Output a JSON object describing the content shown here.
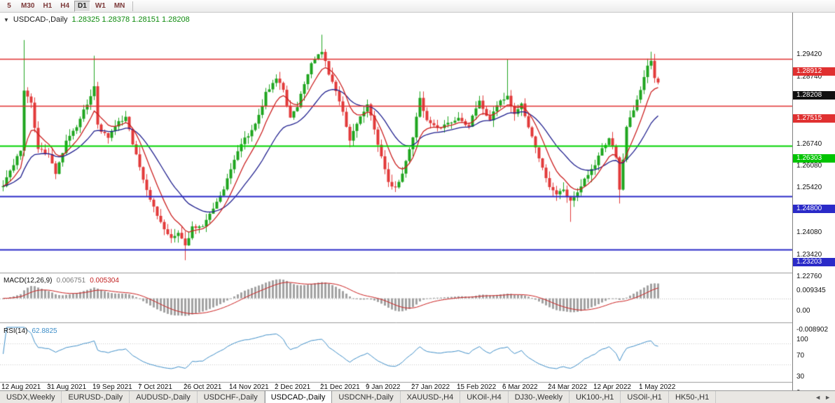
{
  "toolbar": {
    "periods": [
      {
        "label": "5",
        "active": false
      },
      {
        "label": "M30",
        "active": false
      },
      {
        "label": "H1",
        "active": false
      },
      {
        "label": "H4",
        "active": false
      },
      {
        "label": "D1",
        "active": true
      },
      {
        "label": "W1",
        "active": false
      },
      {
        "label": "MN",
        "active": false
      }
    ]
  },
  "chart": {
    "title": "USDCAD-,Daily",
    "ohlc_text": "1.28325 1.28378 1.28151 1.28208",
    "price_axis": {
      "ticks": [
        "1.29420",
        "1.28740",
        "1.27420",
        "1.26740",
        "1.26080",
        "1.25420",
        "1.24080",
        "1.23420",
        "1.22760"
      ],
      "badges": [
        {
          "text": "1.28912",
          "price": 1.28912,
          "bg": "#e03030"
        },
        {
          "text": "1.28208",
          "price": 1.28208,
          "bg": "#101010"
        },
        {
          "text": "1.27515",
          "price": 1.27515,
          "bg": "#e03030"
        },
        {
          "text": "1.26303",
          "price": 1.26303,
          "bg": "#00c400"
        },
        {
          "text": "1.24800",
          "price": 1.248,
          "bg": "#2a2ac8"
        },
        {
          "text": "1.23203",
          "price": 1.23203,
          "bg": "#2a2ac8"
        }
      ]
    }
  },
  "macd": {
    "label": "MACD(12,26,9)",
    "value_main": "0.006751",
    "value_signal": "0.005304",
    "scale_labels": [
      "0.009345",
      "0.00",
      "-0.008902"
    ]
  },
  "rsi": {
    "label": "RSI(14)",
    "value": "62.8825",
    "scale_labels": [
      "100",
      "70",
      "30",
      "0"
    ]
  },
  "dates": {
    "labels": [
      {
        "text": "12 Aug 2021",
        "i": 0
      },
      {
        "text": "31 Aug 2021",
        "i": 13
      },
      {
        "text": "19 Sep 2021",
        "i": 26
      },
      {
        "text": "7 Oct 2021",
        "i": 39
      },
      {
        "text": "26 Oct 2021",
        "i": 52
      },
      {
        "text": "14 Nov 2021",
        "i": 65
      },
      {
        "text": "2 Dec 2021",
        "i": 78
      },
      {
        "text": "21 Dec 2021",
        "i": 91
      },
      {
        "text": "9 Jan 2022",
        "i": 104
      },
      {
        "text": "27 Jan 2022",
        "i": 117
      },
      {
        "text": "15 Feb 2022",
        "i": 130
      },
      {
        "text": "6 Mar 2022",
        "i": 143
      },
      {
        "text": "24 Mar 2022",
        "i": 156
      },
      {
        "text": "12 Apr 2022",
        "i": 169
      },
      {
        "text": "1 May 2022",
        "i": 182
      }
    ]
  },
  "tabs": {
    "items": [
      {
        "label": "USDX,Weekly",
        "active": false
      },
      {
        "label": "EURUSD-,Daily",
        "active": false
      },
      {
        "label": "AUDUSD-,Daily",
        "active": false
      },
      {
        "label": "USDCHF-,Daily",
        "active": false
      },
      {
        "label": "USDCAD-,Daily",
        "active": true
      },
      {
        "label": "USDCNH-,Daily",
        "active": false
      },
      {
        "label": "XAUUSD-,H4",
        "active": false
      },
      {
        "label": "UKOil-,H4",
        "active": false
      },
      {
        "label": "DJ30-,Weekly",
        "active": false
      },
      {
        "label": "UK100-,H1",
        "active": false
      },
      {
        "label": "USOil-,H1",
        "active": false
      },
      {
        "label": "HK50-,H1",
        "active": false
      }
    ],
    "scroll_left": "◄",
    "scroll_right": "►"
  },
  "chart_data": {
    "type": "candlestick",
    "symbol": "USDCAD",
    "period": "Daily",
    "candle_count": 188,
    "visible_price_range": {
      "top": 1.3026,
      "bottom": 1.22529
    },
    "price_keypoints": [
      [
        0,
        1.2515
      ],
      [
        3,
        1.257
      ],
      [
        5,
        1.262
      ],
      [
        6,
        1.28
      ],
      [
        8,
        1.276
      ],
      [
        10,
        1.262
      ],
      [
        13,
        1.261
      ],
      [
        15,
        1.2545
      ],
      [
        18,
        1.265
      ],
      [
        21,
        1.2685
      ],
      [
        24,
        1.276
      ],
      [
        26,
        1.2805
      ],
      [
        27,
        1.269
      ],
      [
        30,
        1.2655
      ],
      [
        33,
        1.27
      ],
      [
        35,
        1.272
      ],
      [
        37,
        1.264
      ],
      [
        39,
        1.257
      ],
      [
        42,
        1.2465
      ],
      [
        45,
        1.2405
      ],
      [
        48,
        1.235
      ],
      [
        50,
        1.2372
      ],
      [
        52,
        1.233
      ],
      [
        54,
        1.2388
      ],
      [
        57,
        1.2392
      ],
      [
        60,
        1.2448
      ],
      [
        63,
        1.25
      ],
      [
        65,
        1.256
      ],
      [
        68,
        1.2638
      ],
      [
        71,
        1.2675
      ],
      [
        73,
        1.272
      ],
      [
        75,
        1.2788
      ],
      [
        78,
        1.2838
      ],
      [
        80,
        1.2798
      ],
      [
        82,
        1.2712
      ],
      [
        84,
        1.2752
      ],
      [
        86,
        1.282
      ],
      [
        88,
        1.2876
      ],
      [
        91,
        1.2918
      ],
      [
        93,
        1.2842
      ],
      [
        95,
        1.2792
      ],
      [
        97,
        1.273
      ],
      [
        99,
        1.2642
      ],
      [
        101,
        1.27
      ],
      [
        104,
        1.2758
      ],
      [
        107,
        1.264
      ],
      [
        110,
        1.252
      ],
      [
        112,
        1.2502
      ],
      [
        114,
        1.255
      ],
      [
        117,
        1.2658
      ],
      [
        119,
        1.2775
      ],
      [
        121,
        1.2702
      ],
      [
        124,
        1.268
      ],
      [
        127,
        1.27
      ],
      [
        130,
        1.2718
      ],
      [
        133,
        1.269
      ],
      [
        136,
        1.2768
      ],
      [
        139,
        1.2702
      ],
      [
        141,
        1.2758
      ],
      [
        144,
        1.2778
      ],
      [
        146,
        1.2722
      ],
      [
        148,
        1.2758
      ],
      [
        150,
        1.2692
      ],
      [
        152,
        1.2622
      ],
      [
        154,
        1.2562
      ],
      [
        156,
        1.2512
      ],
      [
        158,
        1.2482
      ],
      [
        160,
        1.2502
      ],
      [
        162,
        1.2462
      ],
      [
        164,
        1.2492
      ],
      [
        166,
        1.253
      ],
      [
        169,
        1.2578
      ],
      [
        171,
        1.2618
      ],
      [
        173,
        1.2648
      ],
      [
        175,
        1.2598
      ],
      [
        176,
        1.2502
      ],
      [
        177,
        1.259
      ],
      [
        178,
        1.2688
      ],
      [
        180,
        1.2738
      ],
      [
        182,
        1.2798
      ],
      [
        184,
        1.2868
      ],
      [
        185,
        1.2888
      ],
      [
        186,
        1.2838
      ],
      [
        187,
        1.28208
      ]
    ],
    "wick_overrides": [
      {
        "i": 6,
        "high": 1.2948
      },
      {
        "i": 26,
        "high": 1.2901
      },
      {
        "i": 52,
        "low": 1.2288
      },
      {
        "i": 91,
        "high": 1.2964
      },
      {
        "i": 144,
        "high": 1.289
      },
      {
        "i": 162,
        "low": 1.2403
      },
      {
        "i": 176,
        "low": 1.2458
      },
      {
        "i": 185,
        "high": 1.2913
      }
    ],
    "last_candle": {
      "open": 1.28325,
      "high": 1.28378,
      "low": 1.28151,
      "close": 1.28208
    },
    "horizontal_lines": [
      {
        "price": 1.28912,
        "color": "#e03030",
        "width": 1.5
      },
      {
        "price": 1.27515,
        "color": "#e03030",
        "width": 1.5
      },
      {
        "price": 1.26303,
        "color": "#00d400",
        "width": 2
      },
      {
        "price": 1.248,
        "color": "#2a2ac8",
        "width": 2
      },
      {
        "price": 1.23203,
        "color": "#2a2ac8",
        "width": 2
      }
    ],
    "colors": {
      "up": "#1fa51f",
      "down": "#e23a3a"
    },
    "indicators": {
      "ma_fast": {
        "type": "EMA",
        "period": 8,
        "color": "#cc2020"
      },
      "ma_slow": {
        "type": "EMA",
        "period": 21,
        "color": "#20208f"
      },
      "macd": {
        "fast": 12,
        "slow": 26,
        "signal": 9,
        "histogram_color": "#a2a2a2",
        "signal_color": "#cc2020",
        "scale_max": 0.009345,
        "scale_min": -0.008902
      },
      "rsi": {
        "period": 14,
        "color": "#3f8fc9",
        "levels": [
          70,
          30
        ]
      }
    }
  }
}
